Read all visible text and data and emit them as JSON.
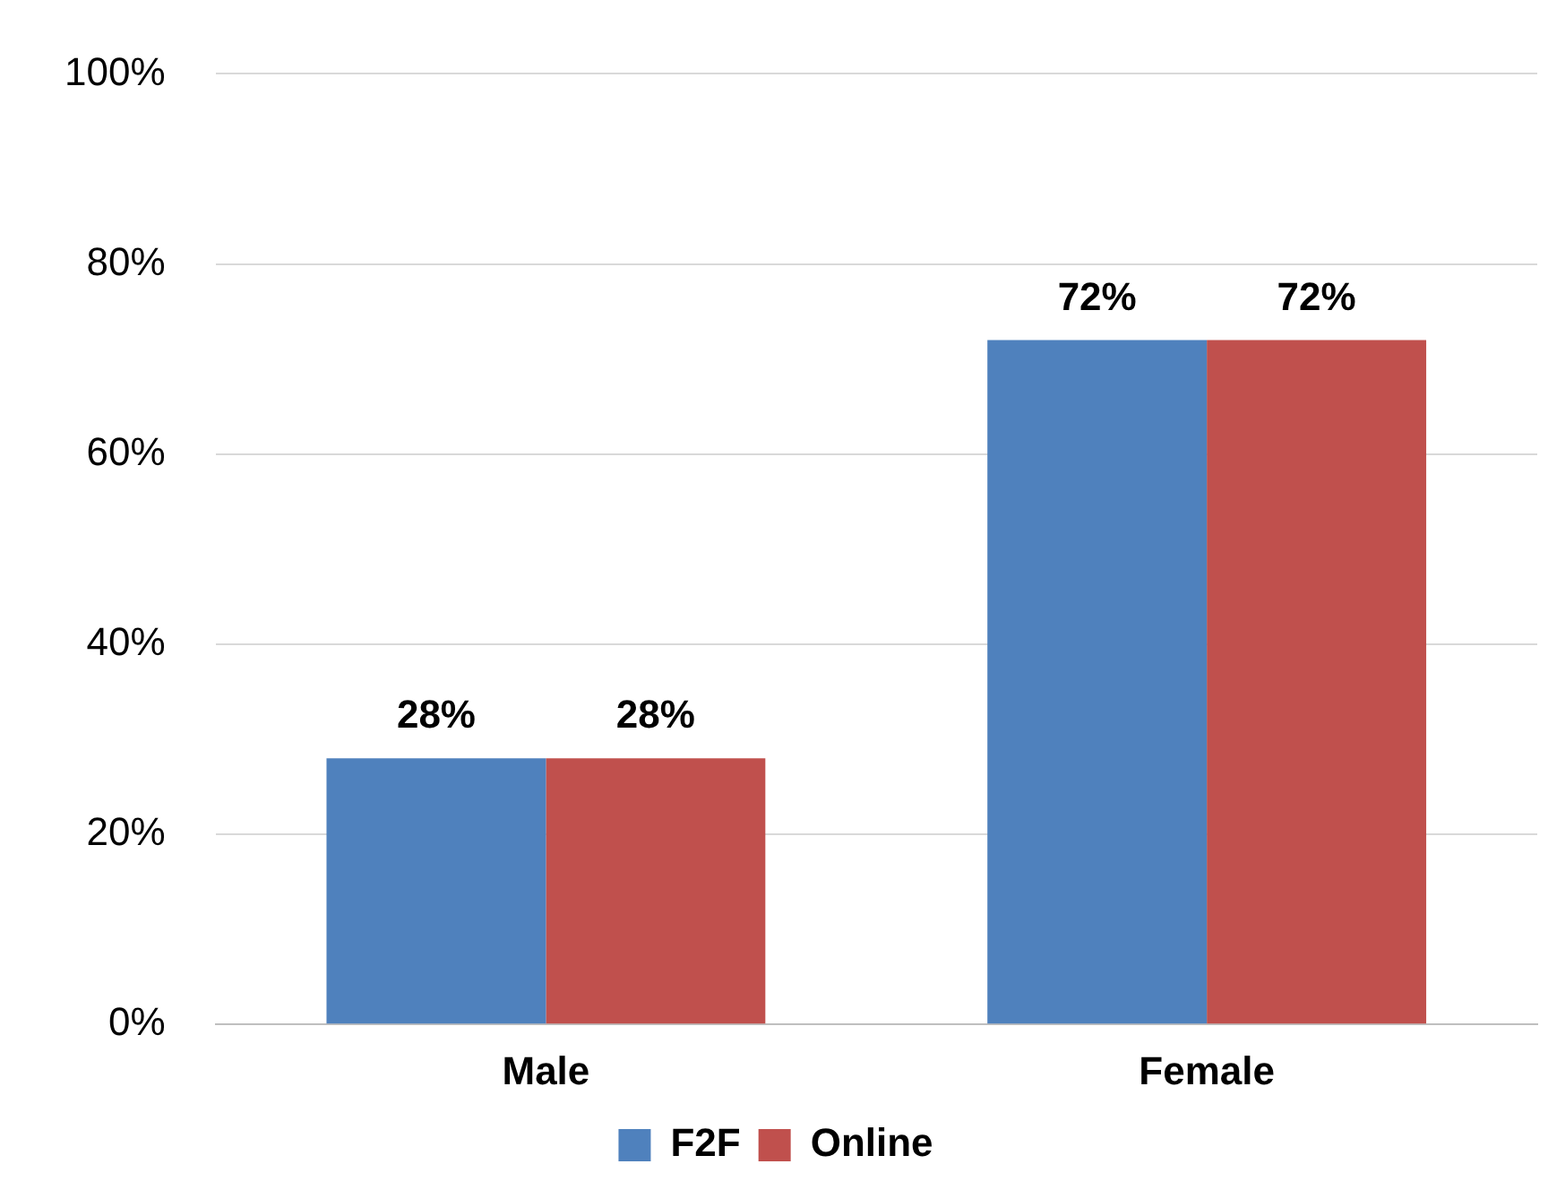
{
  "chart_data": {
    "type": "bar",
    "categories": [
      "Male",
      "Female"
    ],
    "series": [
      {
        "name": "F2F",
        "color": "#4f81bd",
        "values": [
          28,
          72
        ],
        "value_labels": [
          "28%",
          "72%"
        ]
      },
      {
        "name": "Online",
        "color": "#c0504d",
        "values": [
          28,
          72
        ],
        "value_labels": [
          "28%",
          "72%"
        ]
      }
    ],
    "ylim": [
      0,
      100
    ],
    "yticks": [
      {
        "value": 0,
        "label": "0%"
      },
      {
        "value": 20,
        "label": "20%"
      },
      {
        "value": 40,
        "label": "40%"
      },
      {
        "value": 60,
        "label": "60%"
      },
      {
        "value": 80,
        "label": "80%"
      },
      {
        "value": 100,
        "label": "100%"
      }
    ],
    "grid": "y",
    "legend": "bottom"
  }
}
